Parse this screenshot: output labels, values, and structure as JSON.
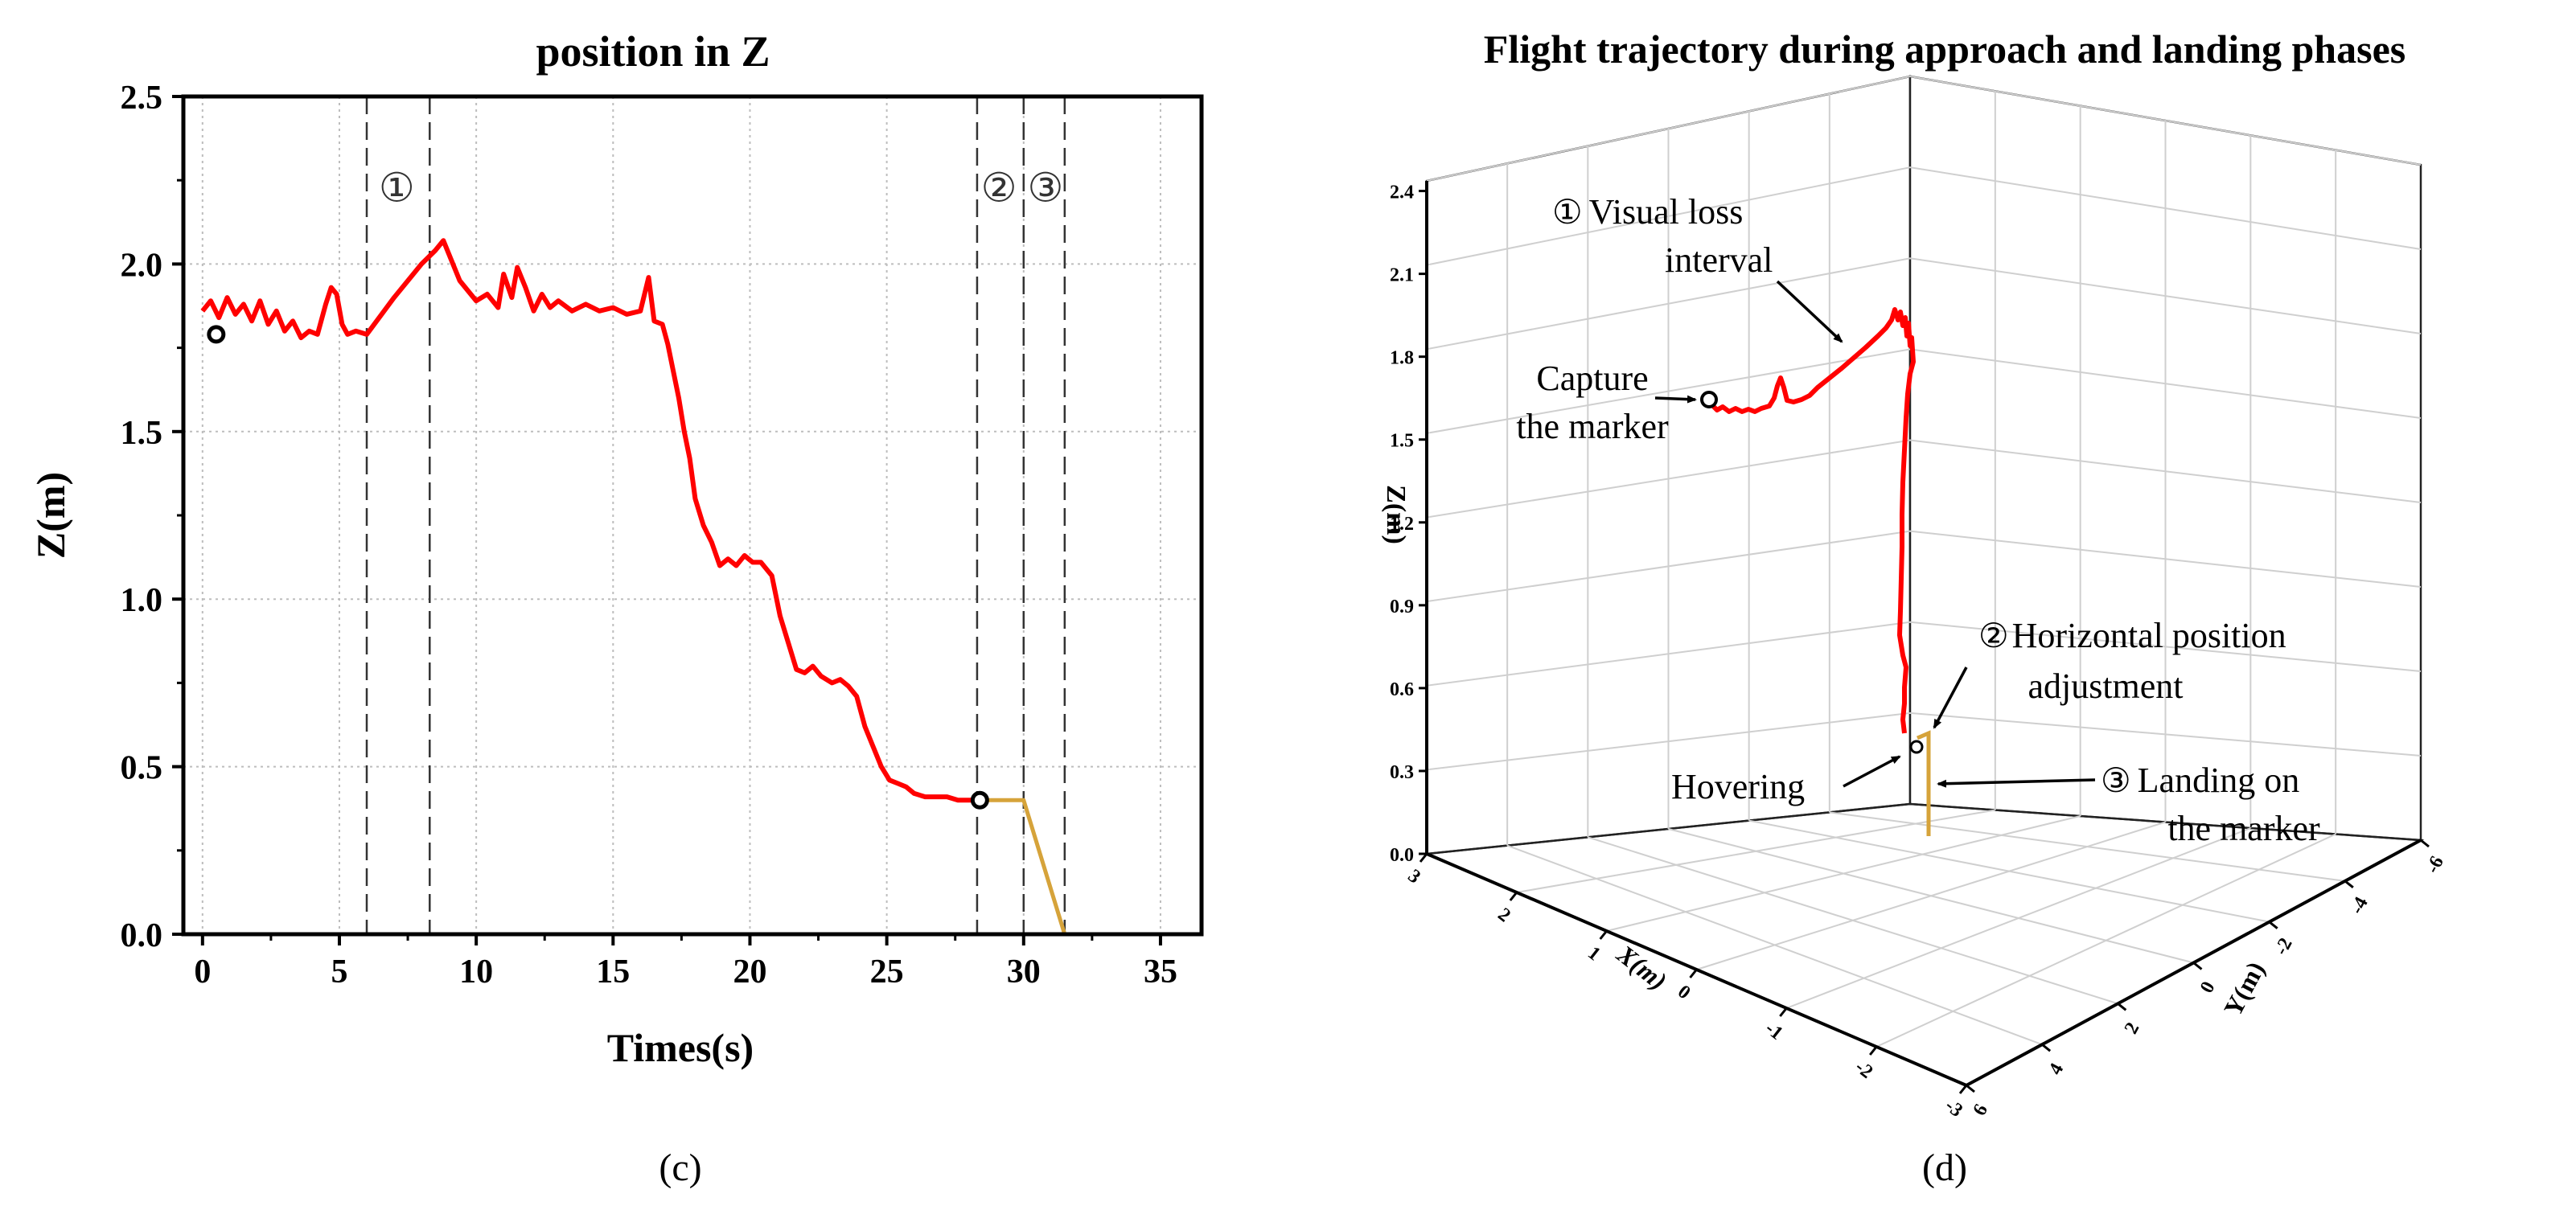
{
  "colors": {
    "red": "#ff0000",
    "gold": "#d6a33a",
    "black": "#000000",
    "grid": "#bdbdbd"
  },
  "chart_data": [
    {
      "type": "line",
      "panel_label": "(c)",
      "title": "position in Z",
      "xlabel": "Times(s)",
      "ylabel": "Z(m)",
      "xlim": [
        -0.7,
        36.5
      ],
      "ylim": [
        0,
        2.5
      ],
      "xticks": [
        0,
        5,
        10,
        15,
        20,
        25,
        30,
        35
      ],
      "yticks": [
        0.0,
        0.5,
        1.0,
        1.5,
        2.0,
        2.5
      ],
      "xtick_labels": [
        "0",
        "5",
        "10",
        "15",
        "20",
        "25",
        "30",
        "35"
      ],
      "ytick_labels": [
        "0.0",
        "0.5",
        "1.0",
        "1.5",
        "2.0",
        "2.5"
      ],
      "vlines": [
        6.0,
        8.3,
        28.3,
        30.0,
        31.5
      ],
      "phase_labels": [
        {
          "text": "①",
          "x": 7.1,
          "y": 2.23
        },
        {
          "text": "②",
          "x": 29.1,
          "y": 2.23
        },
        {
          "text": "③",
          "x": 30.8,
          "y": 2.23
        }
      ],
      "markers": [
        {
          "x": 0.5,
          "y": 1.79
        },
        {
          "x": 28.4,
          "y": 0.4
        }
      ],
      "series": [
        {
          "name": "approach",
          "color": "#ff0000",
          "x": [
            0.0,
            0.3,
            0.6,
            0.9,
            1.2,
            1.5,
            1.8,
            2.1,
            2.4,
            2.7,
            3.0,
            3.3,
            3.6,
            3.9,
            4.2,
            4.5,
            4.7,
            4.9,
            5.1,
            5.3,
            5.6,
            6.0,
            7.0,
            8.0,
            8.5,
            8.8,
            9.1,
            9.4,
            9.7,
            10.0,
            10.4,
            10.8,
            11.0,
            11.3,
            11.5,
            11.8,
            12.1,
            12.4,
            12.7,
            13.0,
            13.5,
            14.0,
            14.5,
            15.0,
            15.5,
            16.0,
            16.3,
            16.5,
            16.8,
            17.0,
            17.2,
            17.4,
            17.6,
            17.8,
            18.0,
            18.3,
            18.6,
            18.9,
            19.2,
            19.5,
            19.8,
            20.1,
            20.4,
            20.8,
            21.1,
            21.4,
            21.7,
            22.0,
            22.3,
            22.6,
            23.0,
            23.3,
            23.6,
            23.9,
            24.2,
            24.5,
            24.8,
            25.1,
            25.4,
            25.7,
            26.0,
            26.4,
            26.8,
            27.2,
            27.6,
            28.0,
            28.4
          ],
          "y": [
            1.86,
            1.89,
            1.84,
            1.9,
            1.85,
            1.88,
            1.83,
            1.89,
            1.82,
            1.86,
            1.8,
            1.83,
            1.78,
            1.8,
            1.79,
            1.88,
            1.93,
            1.91,
            1.82,
            1.79,
            1.8,
            1.79,
            1.9,
            2.0,
            2.04,
            2.07,
            2.01,
            1.95,
            1.92,
            1.89,
            1.91,
            1.87,
            1.97,
            1.9,
            1.99,
            1.93,
            1.86,
            1.91,
            1.87,
            1.89,
            1.86,
            1.88,
            1.86,
            1.87,
            1.85,
            1.86,
            1.96,
            1.83,
            1.82,
            1.76,
            1.68,
            1.6,
            1.5,
            1.42,
            1.3,
            1.22,
            1.17,
            1.1,
            1.12,
            1.1,
            1.13,
            1.11,
            1.11,
            1.07,
            0.95,
            0.87,
            0.79,
            0.78,
            0.8,
            0.77,
            0.75,
            0.76,
            0.74,
            0.71,
            0.62,
            0.56,
            0.5,
            0.46,
            0.45,
            0.44,
            0.42,
            0.41,
            0.41,
            0.41,
            0.4,
            0.4,
            0.4
          ]
        },
        {
          "name": "landing",
          "color": "#d6a33a",
          "x": [
            28.4,
            30.0,
            31.5
          ],
          "y": [
            0.4,
            0.4,
            0.0
          ]
        }
      ]
    },
    {
      "type": "line3d",
      "panel_label": "(d)",
      "title": "Flight trajectory during approach and landing phases",
      "xlabel": "X(m)",
      "ylabel": "Y(m)",
      "zlabel": "Z(m)",
      "zticks": [
        "0.0",
        "0.3",
        "0.6",
        "0.9",
        "1.2",
        "1.5",
        "1.8",
        "2.1",
        "2.4"
      ],
      "xticks": [
        "3",
        "2",
        "1",
        "0",
        "-1",
        "-2",
        "-3"
      ],
      "yticks": [
        "6",
        "4",
        "2",
        "0",
        "-2",
        "-4",
        "-6"
      ],
      "annotations": [
        {
          "id": "visual-loss",
          "circled": "①",
          "line1": "Visual loss",
          "line2": "interval"
        },
        {
          "id": "capture",
          "line1": "Capture",
          "line2": "the marker"
        },
        {
          "id": "horizontal",
          "circled": "②",
          "line1": "Horizontal position",
          "line2": "adjustment"
        },
        {
          "id": "hovering",
          "line1": "Hovering"
        },
        {
          "id": "landing",
          "circled": "③",
          "line1": "Landing on",
          "line2": "the marker"
        }
      ]
    }
  ]
}
